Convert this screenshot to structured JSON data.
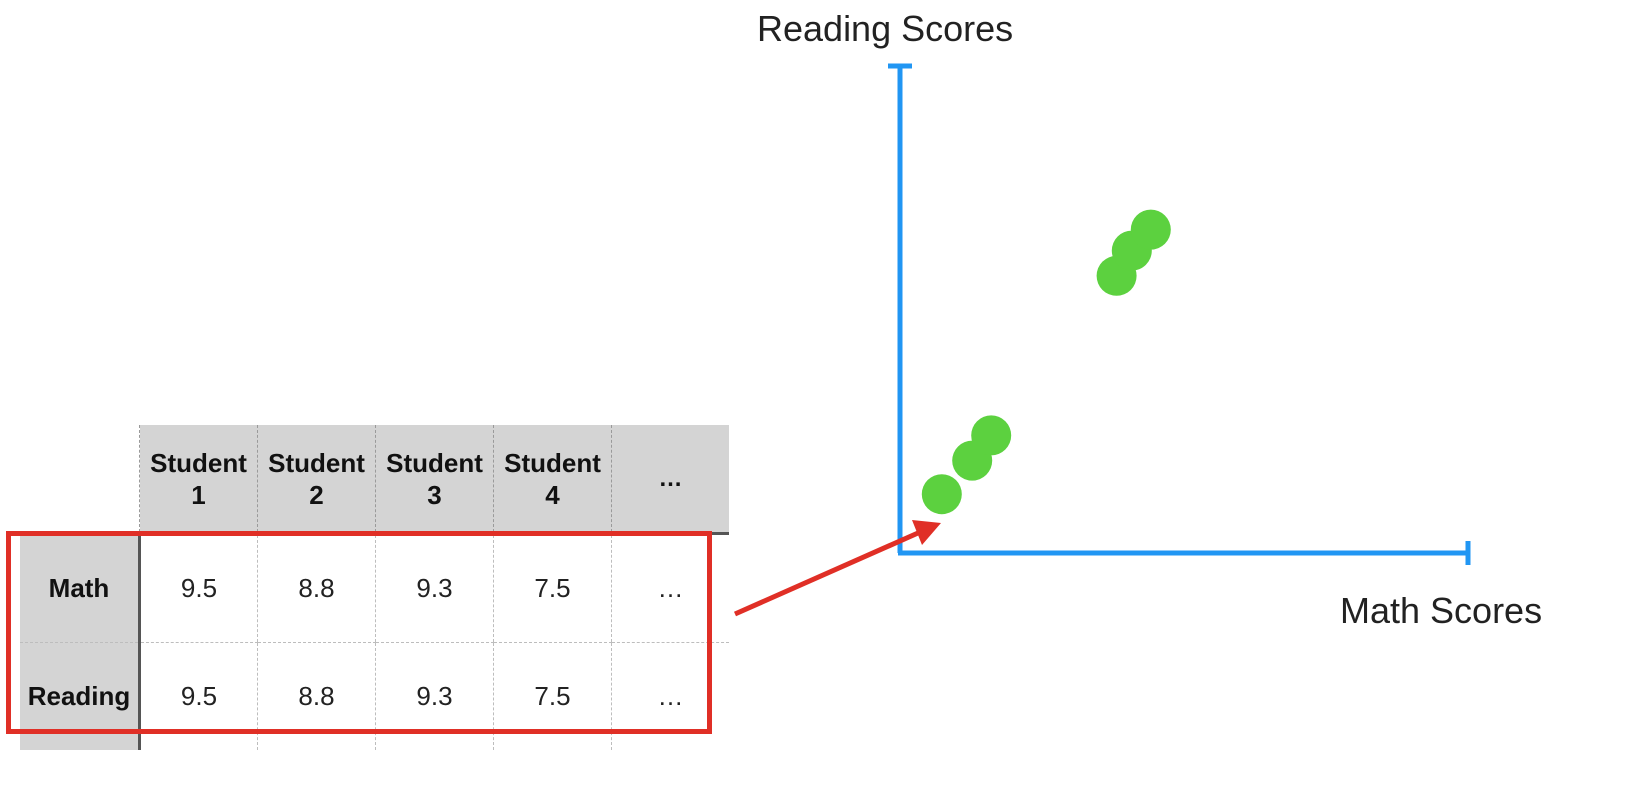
{
  "table": {
    "columns": [
      "Student\n1",
      "Student\n2",
      "Student\n3",
      "Student\n4",
      "…"
    ],
    "rows": [
      {
        "label": "Math",
        "values": [
          "9.5",
          "8.8",
          "9.3",
          "7.5",
          "…"
        ]
      },
      {
        "label": "Reading",
        "values": [
          "9.5",
          "8.8",
          "9.3",
          "7.5",
          "…"
        ]
      }
    ]
  },
  "colors": {
    "axis": "#2196f3",
    "points": "#5cd13f",
    "highlight": "#e02f26",
    "arrow": "#e02f26",
    "header_fill": "#d4d4d4"
  },
  "chart_data": {
    "type": "scatter",
    "xlabel": "Math Scores",
    "ylabel": "Reading Scores",
    "xlim": [
      0,
      10
    ],
    "ylim": [
      0,
      10
    ],
    "grid": false,
    "points": [
      {
        "x": 1.1,
        "y": 1.4
      },
      {
        "x": 1.9,
        "y": 2.2
      },
      {
        "x": 2.4,
        "y": 2.8
      },
      {
        "x": 5.7,
        "y": 6.6
      },
      {
        "x": 6.1,
        "y": 7.2
      },
      {
        "x": 6.6,
        "y": 7.7
      }
    ]
  }
}
